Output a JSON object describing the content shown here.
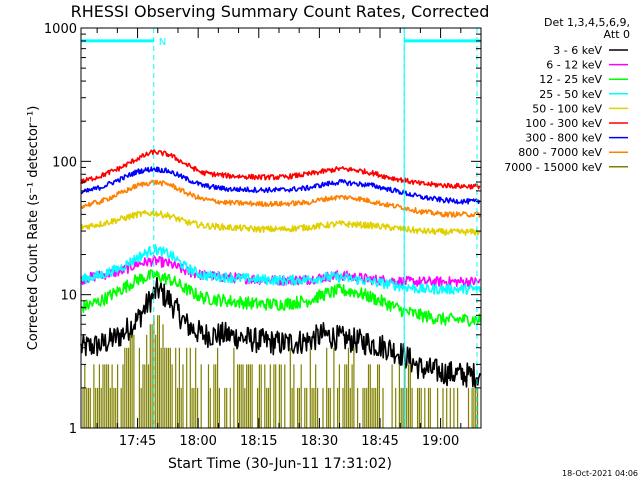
{
  "chart_data": {
    "type": "line",
    "title": "RHESSI Observing Summary Count Rates, Corrected",
    "xlabel": "Start Time (30-Jun-11 17:31:02)",
    "ylabel": "Corrected Count Rate (s⁻¹ detector⁻¹)",
    "yscale": "log",
    "ylim": [
      1,
      1000
    ],
    "xlim_minutes_after_1731": [
      0,
      99
    ],
    "x_ticks": [
      "17:45",
      "18:00",
      "18:15",
      "18:30",
      "18:45",
      "19:00"
    ],
    "x_tick_minutes": [
      14,
      29,
      44,
      59,
      74,
      89
    ],
    "y_ticks": [
      "1",
      "10",
      "100",
      "1000"
    ],
    "y_tick_values": [
      1,
      10,
      100,
      1000
    ],
    "legend_header": [
      "Det 1,3,4,5,6,9,",
      "Att 0"
    ],
    "legend_position": "top-right",
    "night_intervals_minutes": [
      [
        0,
        18
      ],
      [
        80,
        99
      ]
    ],
    "night_flag_value": 800,
    "saa_marker": {
      "label": "N",
      "minute": 18
    },
    "dashed_markers_minutes": [
      18,
      80,
      98
    ],
    "series": [
      {
        "name": "3 - 6 keV",
        "color": "#000000",
        "noise": 0.1,
        "x": [
          0,
          5,
          10,
          14,
          17,
          19,
          22,
          26,
          30,
          36,
          44,
          50,
          56,
          60,
          64,
          68,
          72,
          76,
          80,
          84,
          90,
          95,
          99
        ],
        "y": [
          4,
          4.2,
          5,
          6.5,
          9,
          11,
          9,
          6,
          5,
          5,
          4.5,
          4.3,
          4.5,
          5,
          4.7,
          4.5,
          4.3,
          4,
          3.5,
          2.8,
          2.6,
          2.5,
          2.5
        ]
      },
      {
        "name": "6 - 12 keV",
        "color": "#ff00ff",
        "noise": 0.04,
        "x": [
          0,
          5,
          10,
          14,
          18,
          22,
          26,
          30,
          36,
          44,
          50,
          56,
          60,
          64,
          68,
          72,
          76,
          80,
          84,
          90,
          95,
          99
        ],
        "y": [
          13,
          14,
          15,
          17,
          18,
          17,
          15,
          14,
          13.5,
          13,
          12.8,
          13,
          13.5,
          14,
          13.5,
          13,
          12.8,
          12.5,
          12.5,
          12.5,
          12.5,
          12.5
        ]
      },
      {
        "name": "12 - 25 keV",
        "color": "#00ff00",
        "noise": 0.05,
        "x": [
          0,
          5,
          10,
          14,
          18,
          22,
          26,
          30,
          36,
          44,
          50,
          56,
          60,
          64,
          68,
          72,
          76,
          80,
          84,
          90,
          95,
          99
        ],
        "y": [
          8,
          9,
          11,
          13,
          14,
          13,
          11,
          9.5,
          9,
          8.5,
          8.5,
          9,
          10,
          10.8,
          10.5,
          9.5,
          8.5,
          7.5,
          7,
          6.5,
          6.5,
          6.5
        ]
      },
      {
        "name": "25 - 50 keV",
        "color": "#00ffff",
        "noise": 0.04,
        "x": [
          0,
          5,
          10,
          14,
          18,
          22,
          26,
          30,
          36,
          44,
          50,
          56,
          60,
          64,
          68,
          72,
          76,
          80,
          84,
          90,
          95,
          99
        ],
        "y": [
          13,
          14,
          16,
          19,
          22,
          20,
          16,
          14,
          13.5,
          13,
          12.8,
          13,
          13.5,
          13.5,
          13,
          12.5,
          12,
          11.5,
          11,
          11,
          11,
          11
        ]
      },
      {
        "name": "50 - 100 keV",
        "color": "#e0d000",
        "noise": 0.025,
        "x": [
          0,
          5,
          10,
          14,
          18,
          22,
          26,
          30,
          36,
          44,
          50,
          56,
          60,
          64,
          68,
          72,
          76,
          80,
          84,
          90,
          95,
          99
        ],
        "y": [
          32,
          34,
          37,
          40,
          41,
          39,
          35,
          33,
          32,
          31,
          31,
          32,
          33,
          34,
          33.5,
          33,
          32,
          31,
          30,
          29.5,
          29.5,
          29.5
        ]
      },
      {
        "name": "100 - 300 keV",
        "color": "#ff0000",
        "noise": 0.02,
        "x": [
          0,
          5,
          10,
          14,
          18,
          22,
          26,
          30,
          36,
          44,
          50,
          56,
          60,
          64,
          68,
          72,
          76,
          80,
          84,
          90,
          95,
          99
        ],
        "y": [
          70,
          78,
          90,
          105,
          118,
          112,
          95,
          82,
          78,
          76,
          76,
          80,
          84,
          88,
          86,
          82,
          76,
          72,
          68,
          66,
          65,
          65
        ]
      },
      {
        "name": "300 - 800 keV",
        "color": "#0000ff",
        "noise": 0.02,
        "x": [
          0,
          5,
          10,
          14,
          18,
          22,
          26,
          30,
          36,
          44,
          50,
          56,
          60,
          64,
          68,
          72,
          76,
          80,
          84,
          90,
          95,
          99
        ],
        "y": [
          58,
          64,
          74,
          84,
          88,
          84,
          74,
          66,
          62,
          61,
          61,
          63,
          67,
          70,
          68,
          66,
          62,
          58,
          54,
          51,
          50,
          50
        ]
      },
      {
        "name": "800 - 7000 keV",
        "color": "#ff8000",
        "noise": 0.02,
        "x": [
          0,
          5,
          10,
          14,
          18,
          22,
          26,
          30,
          36,
          44,
          50,
          56,
          60,
          64,
          68,
          72,
          76,
          80,
          84,
          90,
          95,
          99
        ],
        "y": [
          46,
          50,
          58,
          66,
          70,
          67,
          58,
          52,
          49,
          48,
          48,
          49,
          52,
          54,
          53,
          50,
          47,
          45,
          42,
          40,
          40,
          40
        ]
      },
      {
        "name": "7000 - 15000 keV",
        "color": "#808000",
        "noise": 0.0,
        "x": [
          0,
          5,
          10,
          14,
          18,
          22,
          26,
          30,
          36,
          44,
          50,
          56,
          60,
          64,
          68,
          72,
          76,
          80,
          84,
          90,
          95,
          99
        ],
        "y": [
          1.8,
          2.2,
          2.7,
          3.5,
          4.5,
          3.8,
          3,
          2.3,
          2.2,
          2.1,
          2.1,
          2.2,
          2.4,
          2.5,
          2.4,
          2.3,
          2.2,
          2,
          1.5,
          1.3,
          1.3,
          1.3
        ]
      }
    ]
  },
  "footer": {
    "timestamp": "18-Oct-2021 04:06"
  }
}
